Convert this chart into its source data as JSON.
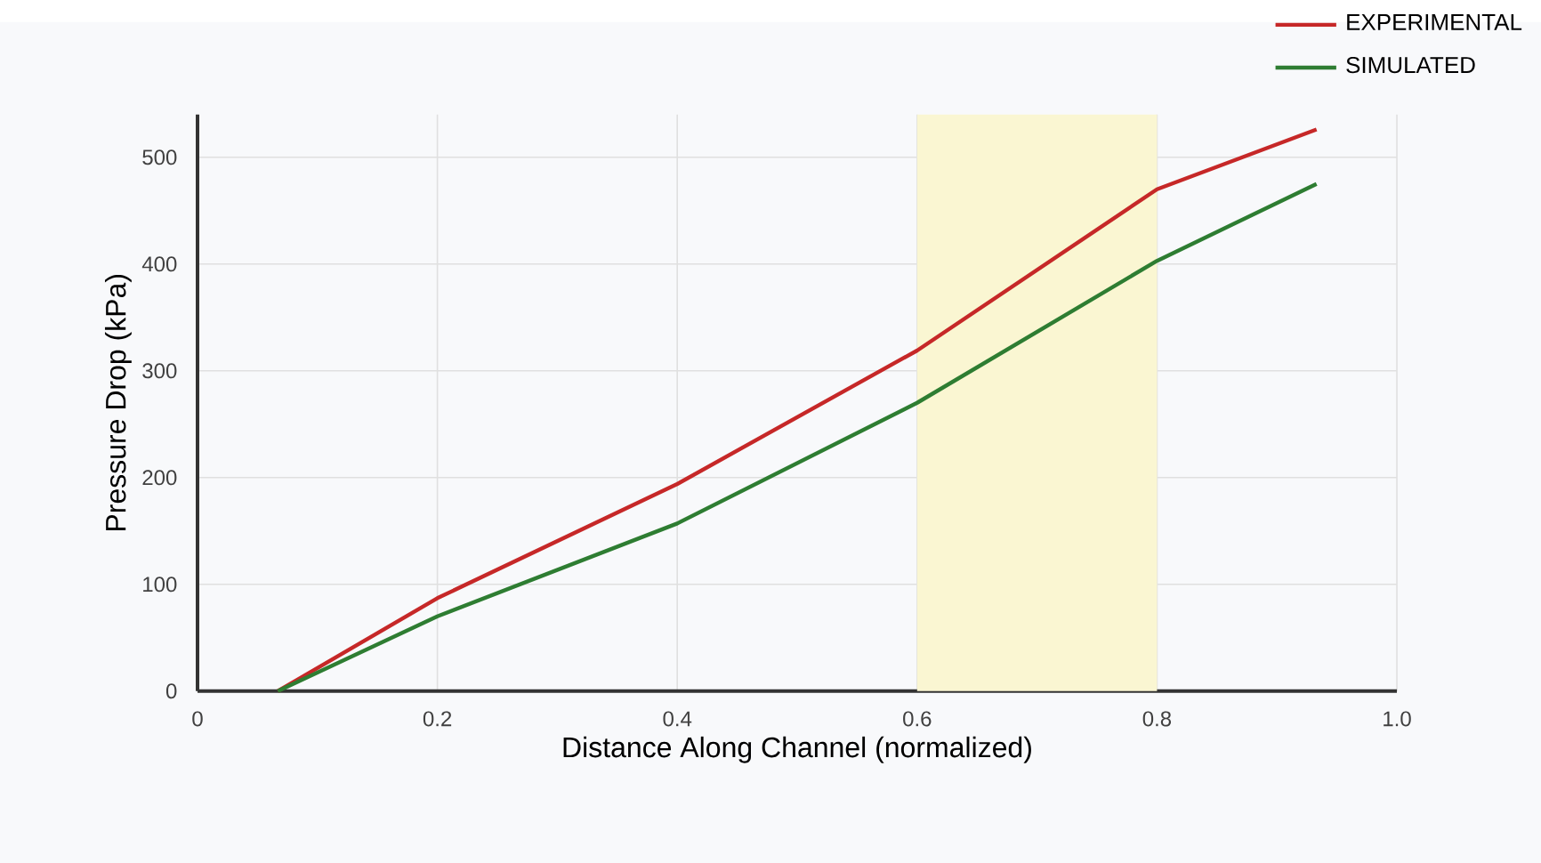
{
  "chart_data": {
    "type": "line",
    "xlabel": "Distance Along Channel (normalized)",
    "ylabel": "Pressure Drop (kPa)",
    "xlim": [
      0,
      1.0
    ],
    "ylim": [
      0,
      540
    ],
    "xticks": [
      {
        "value": 0,
        "label": "0"
      },
      0.2,
      0.4,
      0.6,
      0.8,
      {
        "value": 1.0,
        "label": "1.0"
      }
    ],
    "yticks": [
      0,
      100,
      200,
      300,
      400,
      500
    ],
    "grid": true,
    "legend": "top right",
    "marker": "none",
    "line_style": "solid",
    "bands": [
      {
        "axis": "x",
        "from": 0.6,
        "to": 0.8,
        "color": "#faf6d2"
      }
    ],
    "series": [
      {
        "name": "EXPERIMENTAL",
        "color": "#c62828",
        "x": [
          0.067,
          0.2,
          0.4,
          0.6,
          0.8,
          0.933
        ],
        "values": [
          0,
          87,
          194,
          319,
          470,
          526
        ]
      },
      {
        "name": "SIMULATED",
        "color": "#2e7d32",
        "x": [
          0.067,
          0.2,
          0.4,
          0.6,
          0.8,
          0.933
        ],
        "values": [
          0,
          70,
          157,
          270,
          403,
          475
        ]
      }
    ]
  }
}
